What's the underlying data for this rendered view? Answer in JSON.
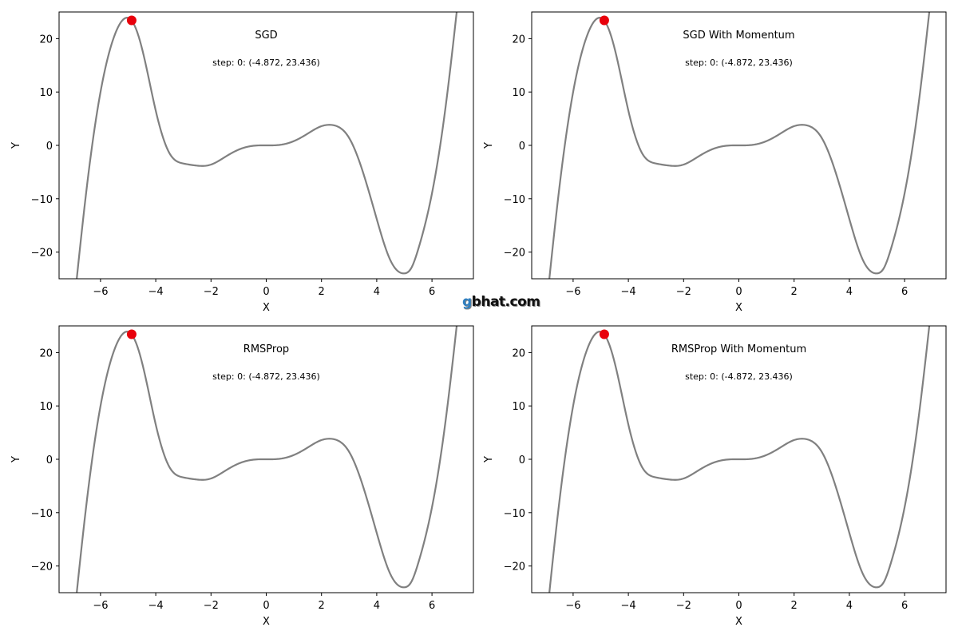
{
  "watermark": {
    "first": "g",
    "rest": "bhat.com"
  },
  "chart_data": [
    {
      "type": "line",
      "title": "SGD",
      "step_text": "step: 0: (-4.872, 23.436)",
      "xlabel": "X",
      "ylabel": "Y",
      "xlim": [
        -7.5,
        7.5
      ],
      "ylim": [
        -25,
        25
      ],
      "xticks": [
        -6,
        -4,
        -2,
        0,
        2,
        4,
        6
      ],
      "yticks": [
        -20,
        -10,
        0,
        10,
        20
      ],
      "curve": {
        "x": [
          -7,
          -6.5,
          -6,
          -5.5,
          -5,
          -4.872,
          -4.5,
          -4,
          -3.5,
          -3,
          -2.5,
          -2.25,
          -2,
          -1.5,
          -1,
          -0.5,
          0,
          0.5,
          1,
          1.5,
          2,
          2.25,
          2.5,
          3,
          3.5,
          4,
          4.5,
          5,
          5.25,
          5.5,
          6,
          6.5,
          7
        ],
        "y": [
          -32,
          -8,
          10,
          20.5,
          23.9,
          23.4,
          18.2,
          6.5,
          -1.5,
          -3.4,
          -3.8,
          -3.85,
          -3.6,
          -2.2,
          -0.8,
          -0.1,
          0,
          0.1,
          0.8,
          2.2,
          3.6,
          3.85,
          3.7,
          1.4,
          -5,
          -13.8,
          -21.6,
          -24,
          -23,
          -19.5,
          -9,
          7.5,
          30
        ]
      },
      "point": {
        "x": -4.872,
        "y": 23.436
      }
    },
    {
      "type": "line",
      "title": "SGD With Momentum",
      "step_text": "step: 0: (-4.872, 23.436)",
      "xlabel": "X",
      "ylabel": "Y",
      "xlim": [
        -7.5,
        7.5
      ],
      "ylim": [
        -25,
        25
      ],
      "xticks": [
        -6,
        -4,
        -2,
        0,
        2,
        4,
        6
      ],
      "yticks": [
        -20,
        -10,
        0,
        10,
        20
      ],
      "curve": {
        "x": [
          -7,
          -6.5,
          -6,
          -5.5,
          -5,
          -4.872,
          -4.5,
          -4,
          -3.5,
          -3,
          -2.5,
          -2.25,
          -2,
          -1.5,
          -1,
          -0.5,
          0,
          0.5,
          1,
          1.5,
          2,
          2.25,
          2.5,
          3,
          3.5,
          4,
          4.5,
          5,
          5.25,
          5.5,
          6,
          6.5,
          7
        ],
        "y": [
          -32,
          -8,
          10,
          20.5,
          23.9,
          23.4,
          18.2,
          6.5,
          -1.5,
          -3.4,
          -3.8,
          -3.85,
          -3.6,
          -2.2,
          -0.8,
          -0.1,
          0,
          0.1,
          0.8,
          2.2,
          3.6,
          3.85,
          3.7,
          1.4,
          -5,
          -13.8,
          -21.6,
          -24,
          -23,
          -19.5,
          -9,
          7.5,
          30
        ]
      },
      "point": {
        "x": -4.872,
        "y": 23.436
      }
    },
    {
      "type": "line",
      "title": "RMSProp",
      "step_text": "step: 0: (-4.872, 23.436)",
      "xlabel": "X",
      "ylabel": "Y",
      "xlim": [
        -7.5,
        7.5
      ],
      "ylim": [
        -25,
        25
      ],
      "xticks": [
        -6,
        -4,
        -2,
        0,
        2,
        4,
        6
      ],
      "yticks": [
        -20,
        -10,
        0,
        10,
        20
      ],
      "curve": {
        "x": [
          -7,
          -6.5,
          -6,
          -5.5,
          -5,
          -4.872,
          -4.5,
          -4,
          -3.5,
          -3,
          -2.5,
          -2.25,
          -2,
          -1.5,
          -1,
          -0.5,
          0,
          0.5,
          1,
          1.5,
          2,
          2.25,
          2.5,
          3,
          3.5,
          4,
          4.5,
          5,
          5.25,
          5.5,
          6,
          6.5,
          7
        ],
        "y": [
          -32,
          -8,
          10,
          20.5,
          23.9,
          23.4,
          18.2,
          6.5,
          -1.5,
          -3.4,
          -3.8,
          -3.85,
          -3.6,
          -2.2,
          -0.8,
          -0.1,
          0,
          0.1,
          0.8,
          2.2,
          3.6,
          3.85,
          3.7,
          1.4,
          -5,
          -13.8,
          -21.6,
          -24,
          -23,
          -19.5,
          -9,
          7.5,
          30
        ]
      },
      "point": {
        "x": -4.872,
        "y": 23.436
      }
    },
    {
      "type": "line",
      "title": "RMSProp With Momentum",
      "step_text": "step: 0: (-4.872, 23.436)",
      "xlabel": "X",
      "ylabel": "Y",
      "xlim": [
        -7.5,
        7.5
      ],
      "ylim": [
        -25,
        25
      ],
      "xticks": [
        -6,
        -4,
        -2,
        0,
        2,
        4,
        6
      ],
      "yticks": [
        -20,
        -10,
        0,
        10,
        20
      ],
      "curve": {
        "x": [
          -7,
          -6.5,
          -6,
          -5.5,
          -5,
          -4.872,
          -4.5,
          -4,
          -3.5,
          -3,
          -2.5,
          -2.25,
          -2,
          -1.5,
          -1,
          -0.5,
          0,
          0.5,
          1,
          1.5,
          2,
          2.25,
          2.5,
          3,
          3.5,
          4,
          4.5,
          5,
          5.25,
          5.5,
          6,
          6.5,
          7
        ],
        "y": [
          -32,
          -8,
          10,
          20.5,
          23.9,
          23.4,
          18.2,
          6.5,
          -1.5,
          -3.4,
          -3.8,
          -3.85,
          -3.6,
          -2.2,
          -0.8,
          -0.1,
          0,
          0.1,
          0.8,
          2.2,
          3.6,
          3.85,
          3.7,
          1.4,
          -5,
          -13.8,
          -21.6,
          -24,
          -23,
          -19.5,
          -9,
          7.5,
          30
        ]
      },
      "point": {
        "x": -4.872,
        "y": 23.436
      }
    }
  ],
  "colors": {
    "curve": "#808080",
    "point": "#e8000b",
    "axes": "#000000"
  }
}
